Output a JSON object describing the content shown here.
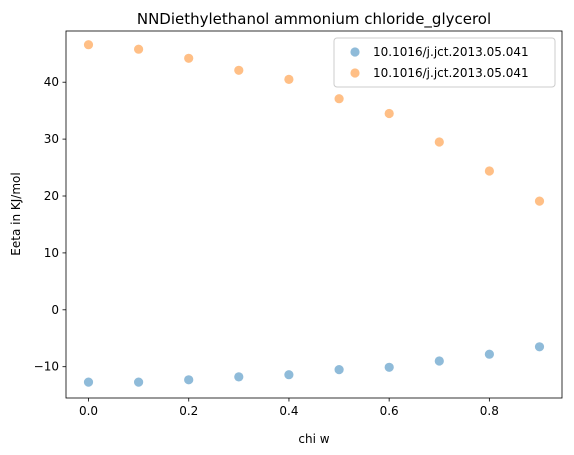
{
  "chart_data": {
    "type": "scatter",
    "title": "NNDiethylethanol ammonium chloride_glycerol",
    "xlabel": "chi w",
    "ylabel": "Eeta in KJ/mol",
    "xlim": [
      -0.045,
      0.945
    ],
    "ylim": [
      -15.5,
      49.0
    ],
    "xticks": [
      0.0,
      0.2,
      0.4,
      0.6,
      0.8
    ],
    "xtick_labels": [
      "0.0",
      "0.2",
      "0.4",
      "0.6",
      "0.8"
    ],
    "yticks": [
      -10,
      0,
      10,
      20,
      30,
      40
    ],
    "ytick_labels": [
      "−10",
      "0",
      "10",
      "20",
      "30",
      "40"
    ],
    "grid": false,
    "legend_position": "top-right",
    "series": [
      {
        "name": "10.1016/j.jct.2013.05.041",
        "color": "#1f77b4",
        "x": [
          0.0,
          0.1,
          0.2,
          0.3,
          0.4,
          0.5,
          0.6,
          0.7,
          0.8,
          0.9
        ],
        "y": [
          -12.7,
          -12.7,
          -12.3,
          -11.8,
          -11.4,
          -10.5,
          -10.1,
          -9.0,
          -7.8,
          -6.5
        ]
      },
      {
        "name": "10.1016/j.jct.2013.05.041",
        "color": "#ff7f0e",
        "x": [
          0.0,
          0.1,
          0.2,
          0.3,
          0.4,
          0.5,
          0.6,
          0.7,
          0.8,
          0.9
        ],
        "y": [
          46.6,
          45.8,
          44.2,
          42.1,
          40.5,
          37.1,
          34.5,
          29.5,
          24.4,
          19.1
        ]
      }
    ]
  }
}
